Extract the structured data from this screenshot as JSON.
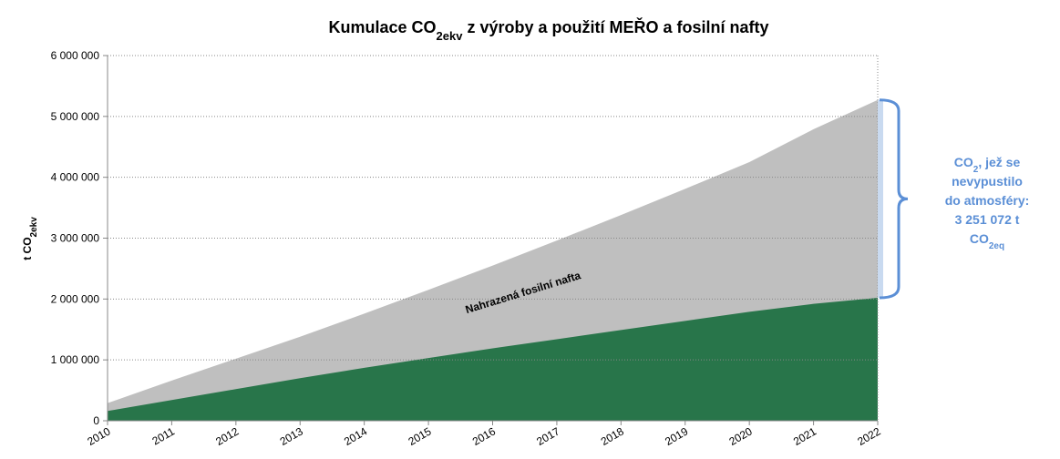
{
  "chart_data": {
    "type": "area",
    "title": [
      "Kumulace CO",
      "2ekv",
      " z výroby a použití MEŘO a fosilní nafty"
    ],
    "y_label": [
      "t CO",
      "2ekv"
    ],
    "categories": [
      "2010",
      "2011",
      "2012",
      "2013",
      "2014",
      "2015",
      "2016",
      "2017",
      "2018",
      "2019",
      "2020",
      "2021",
      "2022"
    ],
    "series": [
      {
        "color": "#bfbfbf",
        "values": [
          290000,
          660000,
          1020000,
          1380000,
          1760000,
          2150000,
          2550000,
          2960000,
          3380000,
          3810000,
          4250000,
          4790000,
          5270000
        ]
      },
      {
        "color": "#28754a",
        "values": [
          160000,
          340000,
          520000,
          700000,
          870000,
          1030000,
          1190000,
          1340000,
          1490000,
          1640000,
          1790000,
          1920000,
          2020000
        ]
      }
    ],
    "ylim": [
      0,
      6000000
    ],
    "yticks": [
      0,
      {
        "value": 1000000,
        "label": "1 000 000"
      },
      {
        "value": 2000000,
        "label": "2 000 000"
      },
      {
        "value": 3000000,
        "label": "3 000 000"
      },
      {
        "value": 4000000,
        "label": "4 000 000"
      },
      {
        "value": 5000000,
        "label": "5 000 000"
      },
      {
        "value": 6000000,
        "label": "6 000 000"
      }
    ],
    "grid": true,
    "area_label": "Nahrazená fosilní nafta",
    "bracket_color": "#5b8fd6",
    "bracket_fill": "#c9daf0",
    "annotation": [
      [
        "CO",
        "2",
        ", jež se"
      ],
      [
        "nevypustilo"
      ],
      [
        "do atmosféry:"
      ],
      [
        "3 251 072 t"
      ],
      [
        "CO",
        "2eq"
      ]
    ]
  }
}
